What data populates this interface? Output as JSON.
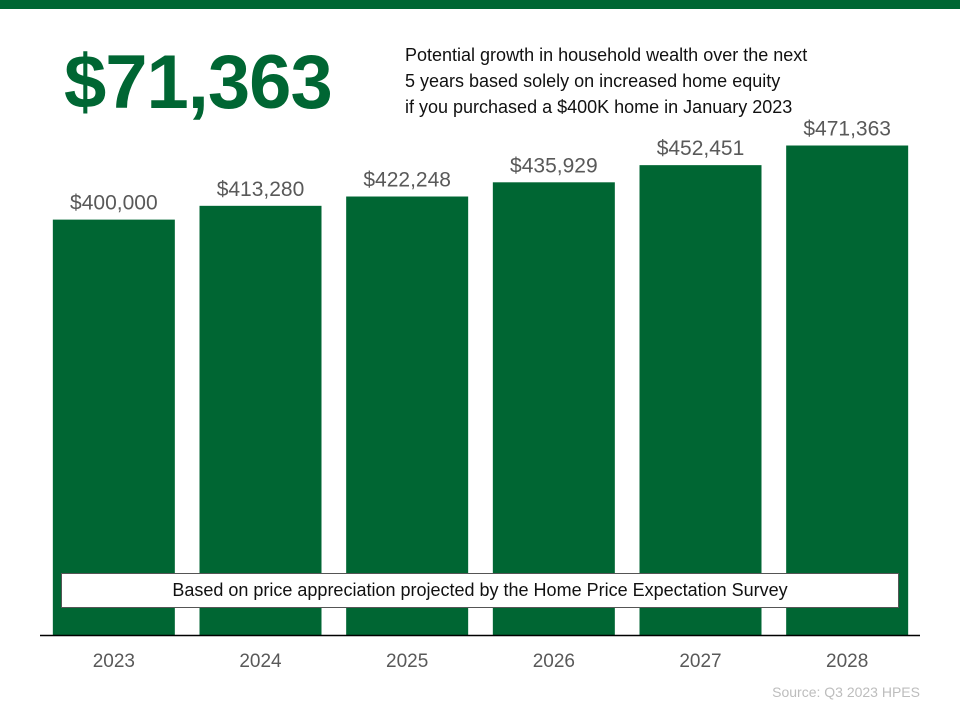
{
  "header": {
    "big_number": "$71,363",
    "subtitle_lines": [
      "Potential growth in household wealth over the next",
      "5 years based solely on increased home equity",
      "if you purchased a $400K home in January 2023"
    ]
  },
  "note": "Based on price appreciation projected by the Home Price Expectation Survey",
  "source": "Source: Q3 2023 HPES",
  "colors": {
    "accent": "#006633",
    "bar": "#006633",
    "value_label": "#595959",
    "tick_label": "#595959",
    "axis": "#000000"
  },
  "chart_data": {
    "type": "bar",
    "categories": [
      "2023",
      "2024",
      "2025",
      "2026",
      "2027",
      "2028"
    ],
    "values": [
      400000,
      413280,
      422248,
      435929,
      452451,
      471363
    ],
    "data_labels": [
      "$400,000",
      "$413,280",
      "$422,248",
      "$435,929",
      "$452,451",
      "$471,363"
    ],
    "title": "",
    "xlabel": "",
    "ylabel": "",
    "ylim": [
      0,
      520000
    ],
    "grid": false,
    "legend": "none"
  }
}
